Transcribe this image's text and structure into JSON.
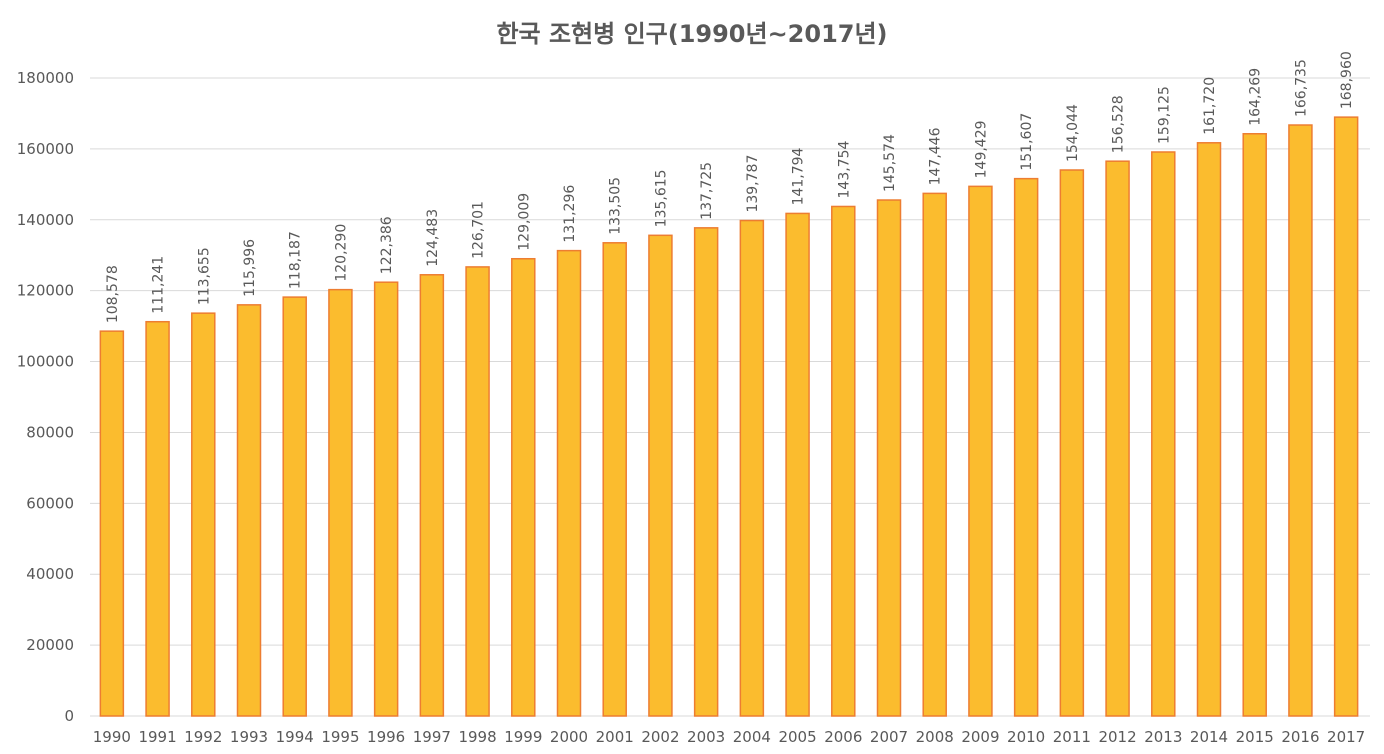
{
  "chart_data": {
    "type": "bar",
    "title": "한국 조현병 인구(1990년~2017년)",
    "xlabel": "",
    "ylabel": "",
    "ylim": [
      0,
      180000
    ],
    "yticks": [
      0,
      20000,
      40000,
      60000,
      80000,
      100000,
      120000,
      140000,
      160000,
      180000
    ],
    "ytick_labels": [
      "0",
      "20000",
      "40000",
      "60000",
      "80000",
      "100000",
      "120000",
      "140000",
      "160000",
      "180000"
    ],
    "grid": true,
    "legend": "none",
    "bar_fill": "#FBBC2E",
    "bar_stroke": "#ED7D31",
    "gridline_color": "#D9D9D9",
    "categories": [
      "1990",
      "1991",
      "1992",
      "1993",
      "1994",
      "1995",
      "1996",
      "1997",
      "1998",
      "1999",
      "2000",
      "2001",
      "2002",
      "2003",
      "2004",
      "2005",
      "2006",
      "2007",
      "2008",
      "2009",
      "2010",
      "2011",
      "2012",
      "2013",
      "2014",
      "2015",
      "2016",
      "2017"
    ],
    "values": [
      108578,
      111241,
      113655,
      115996,
      118187,
      120290,
      122386,
      124483,
      126701,
      129009,
      131296,
      133505,
      135615,
      137725,
      139787,
      141794,
      143754,
      145574,
      147446,
      149429,
      151607,
      154044,
      156528,
      159125,
      161720,
      164269,
      166735,
      168960
    ],
    "data_labels": [
      "108,578",
      "111,241",
      "113,655",
      "115,996",
      "118,187",
      "120,290",
      "122,386",
      "124,483",
      "126,701",
      "129,009",
      "131,296",
      "133,505",
      "135,615",
      "137,725",
      "139,787",
      "141,794",
      "143,754",
      "145,574",
      "147,446",
      "149,429",
      "151,607",
      "154,044",
      "156,528",
      "159,125",
      "161,720",
      "164,269",
      "166,735",
      "168,960"
    ]
  }
}
